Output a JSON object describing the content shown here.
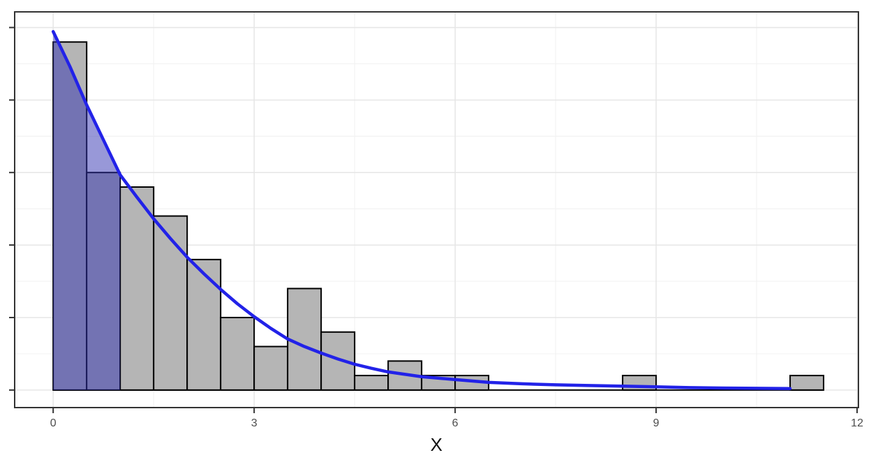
{
  "figure": {
    "background_color": "#ffffff"
  },
  "chart_data": {
    "type": "histogram",
    "title": "",
    "xlabel": "X",
    "ylabel": "",
    "xlim": [
      -0.575,
      12.02
    ],
    "ylim": [
      -1.21,
      26.08
    ],
    "x_tick_values": [
      0,
      3,
      6,
      9,
      12
    ],
    "x_tick_labels": [
      "0",
      "3",
      "6",
      "9",
      "12"
    ],
    "x_minor_gridlines": [
      1.5,
      4.5,
      7.5,
      10.5
    ],
    "y_tick_values": [
      0,
      5,
      10,
      15,
      20,
      25
    ],
    "y_tick_labels": [],
    "y_minor_gridlines": [
      2.5,
      7.5,
      12.5,
      17.5,
      22.5
    ],
    "grid": "major-and-minor",
    "legend": "none",
    "bin_width": 0.5,
    "bin_start": 0,
    "bin_counts": [
      24,
      15,
      14,
      12,
      9,
      5,
      3,
      7,
      4,
      1,
      2,
      1,
      1,
      0,
      0,
      0,
      0,
      1,
      0,
      0,
      0,
      0,
      1
    ],
    "baseline_extent": [
      0,
      11.5
    ],
    "total_n": 100,
    "series": [
      {
        "name": "histogram-bars",
        "style": "bars",
        "fill": "#b5b5b5",
        "stroke": "#000000"
      },
      {
        "name": "density-curve",
        "style": "line",
        "stroke": "#2222e8",
        "points": [
          [
            0,
            24.72
          ],
          [
            0.25,
            22.31
          ],
          [
            0.5,
            19.66
          ],
          [
            0.75,
            17.25
          ],
          [
            1.0,
            14.84
          ],
          [
            1.25,
            13.3
          ],
          [
            1.5,
            11.81
          ],
          [
            1.75,
            10.45
          ],
          [
            2.0,
            9.16
          ],
          [
            2.25,
            8.02
          ],
          [
            2.5,
            6.94
          ],
          [
            2.75,
            5.95
          ],
          [
            3.0,
            5.06
          ],
          [
            3.25,
            4.25
          ],
          [
            3.5,
            3.52
          ],
          [
            3.75,
            3.0
          ],
          [
            4.0,
            2.55
          ],
          [
            4.25,
            2.14
          ],
          [
            4.5,
            1.78
          ],
          [
            4.75,
            1.5
          ],
          [
            5.0,
            1.25
          ],
          [
            5.5,
            0.92
          ],
          [
            6.0,
            0.72
          ],
          [
            6.5,
            0.53
          ],
          [
            7.0,
            0.43
          ],
          [
            7.5,
            0.36
          ],
          [
            8.0,
            0.31
          ],
          [
            8.5,
            0.27
          ],
          [
            9.0,
            0.22
          ],
          [
            9.5,
            0.17
          ],
          [
            10.0,
            0.14
          ],
          [
            10.5,
            0.12
          ],
          [
            11.0,
            0.1
          ]
        ]
      },
      {
        "name": "shaded-area-under-curve",
        "style": "area",
        "x_range": [
          0,
          1
        ],
        "fill": "#3131b1",
        "opacity": 0.5
      }
    ],
    "colors": {
      "bar_fill": "#b5b5b5",
      "bar_border": "#000000",
      "curve": "#2222e8",
      "shade_fill": "#3131b1",
      "shade_opacity": 0.5,
      "grid_major": "#e6e6e6",
      "grid_minor": "#f3f3f3",
      "panel_border": "#333333",
      "tick_mark": "#333333",
      "tick_label": "#4d4d4d",
      "axis_title": "#111111",
      "baseline": "#000000"
    }
  }
}
